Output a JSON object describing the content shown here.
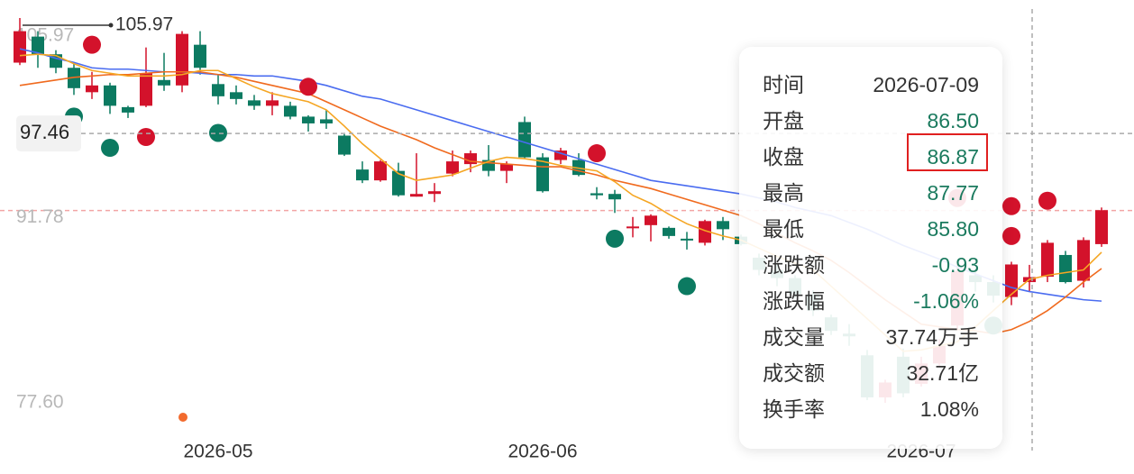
{
  "chart_data": {
    "type": "candlestick",
    "categories": [
      null,
      null,
      null,
      null,
      null,
      null,
      null,
      null,
      null,
      null,
      null,
      "2026-05",
      null,
      null,
      null,
      null,
      null,
      null,
      null,
      null,
      null,
      null,
      null,
      null,
      null,
      null,
      null,
      null,
      null,
      "2026-06",
      null,
      null,
      null,
      null,
      null,
      null,
      null,
      null,
      null,
      null,
      null,
      null,
      null,
      null,
      null,
      null,
      null,
      null,
      null,
      null,
      "2026-07",
      null,
      null,
      null,
      null,
      null,
      null,
      null,
      null,
      null,
      null
    ],
    "open": [
      102.68,
      104.6,
      103.3,
      102.3,
      100.5,
      101.0,
      99.4,
      99.5,
      101.4,
      101.0,
      104.0,
      101.1,
      100.5,
      99.9,
      99.5,
      99.5,
      98.7,
      98.5,
      97.3,
      94.8,
      94.0,
      94.7,
      92.8,
      93.0,
      94.5,
      95.2,
      95.5,
      94.7,
      98.3,
      95.7,
      95.5,
      95.5,
      93.05,
      93.0,
      90.5,
      90.7,
      90.5,
      89.7,
      89.4,
      91.0,
      89.85,
      88.3,
      87.4,
      86.8,
      85.6,
      83.9,
      82.7,
      81.1,
      78.0,
      81.0,
      79.0,
      80.5,
      83.3,
      87.0,
      86.5,
      85.4,
      86.5,
      86.9,
      88.5,
      86.6,
      89.3
    ],
    "close": [
      105.0,
      103.3,
      102.3,
      100.8,
      101.0,
      99.5,
      99.0,
      101.9,
      101.0,
      104.8,
      102.3,
      100.2,
      100.0,
      99.5,
      99.9,
      98.7,
      98.2,
      98.2,
      95.9,
      94.0,
      95.4,
      92.9,
      93.0,
      93.2,
      95.4,
      96.0,
      94.7,
      95.2,
      95.7,
      93.2,
      96.2,
      94.4,
      92.9,
      92.6,
      90.6,
      91.4,
      89.9,
      89.6,
      91.0,
      90.4,
      89.3,
      87.4,
      86.8,
      85.6,
      84.4,
      82.9,
      82.5,
      78.0,
      79.1,
      78.3,
      80.5,
      81.8,
      87.3,
      86.5,
      85.5,
      87.8,
      86.87,
      89.4,
      86.5,
      89.6,
      91.8
    ],
    "high": [
      105.97,
      105.0,
      103.6,
      102.6,
      102.0,
      101.2,
      99.5,
      103.8,
      103.4,
      105.0,
      105.0,
      101.8,
      101.0,
      100.3,
      100.5,
      99.8,
      98.8,
      99.2,
      97.4,
      95.4,
      95.5,
      95.3,
      96.0,
      93.8,
      96.2,
      96.2,
      96.6,
      95.4,
      98.7,
      96.0,
      96.4,
      96.0,
      93.5,
      93.3,
      91.3,
      91.5,
      90.6,
      90.2,
      91.1,
      91.3,
      90.0,
      88.6,
      87.8,
      87.0,
      85.9,
      84.1,
      83.4,
      81.5,
      79.3,
      81.6,
      81.0,
      82.3,
      88.0,
      87.5,
      87.0,
      88.0,
      87.77,
      89.6,
      88.8,
      89.8,
      92.0
    ],
    "low": [
      102.5,
      102.3,
      101.9,
      100.3,
      100.0,
      98.9,
      98.6,
      99.4,
      100.6,
      100.5,
      101.8,
      99.6,
      99.6,
      99.2,
      98.8,
      98.5,
      97.6,
      97.8,
      95.8,
      93.8,
      93.9,
      92.8,
      92.8,
      92.4,
      94.3,
      94.6,
      94.3,
      93.8,
      95.6,
      93.1,
      95.2,
      94.3,
      92.6,
      91.6,
      89.8,
      89.5,
      89.7,
      88.9,
      89.2,
      89.6,
      89.2,
      87.0,
      86.2,
      85.3,
      84.0,
      82.6,
      81.8,
      77.8,
      77.6,
      78.0,
      78.8,
      80.2,
      83.0,
      85.8,
      85.0,
      84.8,
      85.8,
      86.5,
      86.4,
      86.1,
      89.1
    ],
    "up_color": "#d3122b",
    "down_color": "#0c7a61",
    "series": [
      {
        "color": "#4a6cf0",
        "values": [
          103.7,
          103.4,
          103.0,
          102.7,
          102.3,
          102.2,
          102.2,
          102.1,
          102.0,
          102.0,
          101.9,
          101.8,
          101.8,
          101.7,
          101.7,
          101.5,
          101.3,
          101.0,
          100.6,
          100.2,
          100.0,
          99.6,
          99.2,
          98.8,
          98.4,
          98.0,
          97.6,
          97.2,
          96.8,
          96.4,
          96.0,
          95.6,
          95.2,
          94.8,
          94.4,
          94.0,
          93.8,
          93.6,
          93.4,
          93.2,
          93.0,
          92.7,
          92.4,
          92.0,
          91.7,
          91.4,
          90.9,
          90.4,
          89.8,
          89.2,
          88.7,
          88.2,
          87.6,
          87.1,
          86.6,
          86.1,
          85.8,
          85.6,
          85.4,
          85.2,
          85.1
        ]
      },
      {
        "color": "#f06a1e",
        "values": [
          101.0,
          101.2,
          101.4,
          101.6,
          101.7,
          101.8,
          101.8,
          101.9,
          102.0,
          102.0,
          102.0,
          101.8,
          101.6,
          101.3,
          101.0,
          100.7,
          100.4,
          99.8,
          99.2,
          98.6,
          98.0,
          97.5,
          97.0,
          96.4,
          95.9,
          95.4,
          95.3,
          95.2,
          95.1,
          95.0,
          95.0,
          94.7,
          94.4,
          94.0,
          93.7,
          93.4,
          93.0,
          92.6,
          92.2,
          91.8,
          91.4,
          90.8,
          90.1,
          89.4,
          88.8,
          88.1,
          87.2,
          86.2,
          85.2,
          84.3,
          83.4,
          83.2,
          83.0,
          82.9,
          82.7,
          83.0,
          83.6,
          84.4,
          85.4,
          86.5,
          87.5
        ]
      },
      {
        "color": "#f5a623",
        "values": [
          103.2,
          103.3,
          103.2,
          102.6,
          102.1,
          101.9,
          101.7,
          101.7,
          101.7,
          101.8,
          102.1,
          102.1,
          101.5,
          100.9,
          100.4,
          100.1,
          99.8,
          99.2,
          98.0,
          96.7,
          95.6,
          94.5,
          94.0,
          94.2,
          94.4,
          94.9,
          95.4,
          95.7,
          95.6,
          95.4,
          95.1,
          94.9,
          94.7,
          93.9,
          92.9,
          92.3,
          91.5,
          90.8,
          90.3,
          89.9,
          89.6,
          89.0,
          88.4,
          87.9,
          87.4,
          86.2,
          85.0,
          83.8,
          82.6,
          81.4,
          81.5,
          81.8,
          82.1,
          83.2,
          84.4,
          85.6,
          86.7,
          87.0,
          87.2,
          87.4,
          88.7
        ]
      }
    ],
    "markers": [
      {
        "index": 4,
        "price": 104.0,
        "color": "#d3122b"
      },
      {
        "index": 7,
        "price": 97.2,
        "color": "#d3122b"
      },
      {
        "index": 16,
        "price": 100.9,
        "color": "#d3122b"
      },
      {
        "index": 32,
        "price": 96.0,
        "color": "#d3122b"
      },
      {
        "index": 52,
        "price": 92.7,
        "color": "#d3122b"
      },
      {
        "index": 55,
        "price": 92.1,
        "color": "#d3122b"
      },
      {
        "index": 55,
        "price": 89.9,
        "color": "#d3122b"
      },
      {
        "index": 57,
        "price": 92.5,
        "color": "#d3122b"
      },
      {
        "index": 3,
        "price": 98.7,
        "color": "#0c7a61"
      },
      {
        "index": 5,
        "price": 96.4,
        "color": "#0c7a61"
      },
      {
        "index": 11,
        "price": 97.5,
        "color": "#0c7a61"
      },
      {
        "index": 33,
        "price": 89.7,
        "color": "#0c7a61"
      },
      {
        "index": 37,
        "price": 86.2,
        "color": "#0c7a61"
      },
      {
        "index": 54,
        "price": 83.3,
        "color": "#0c7a61"
      }
    ],
    "ylim": [
      77.6,
      105.97
    ],
    "yticks": [
      105.97,
      {
        "value": 77.6,
        "label": "77.60"
      }
    ],
    "reference_line": 91.78,
    "max_label": 105.97,
    "crosshair": {
      "index": 56,
      "price": 97.46
    },
    "tooltip": {
      "rows": [
        [
          "时间",
          "2026-07-09"
        ],
        [
          "开盘",
          "86.50"
        ],
        [
          "收盘",
          "86.87"
        ],
        [
          "最高",
          "87.77"
        ],
        [
          "最低",
          "85.80"
        ],
        [
          "涨跌额",
          "-0.93"
        ],
        [
          "涨跌幅",
          "-1.06%"
        ],
        [
          "成交量",
          "37.74万手"
        ],
        [
          "成交额",
          "32.71亿"
        ],
        [
          "换手率",
          "1.08%"
        ]
      ]
    }
  }
}
